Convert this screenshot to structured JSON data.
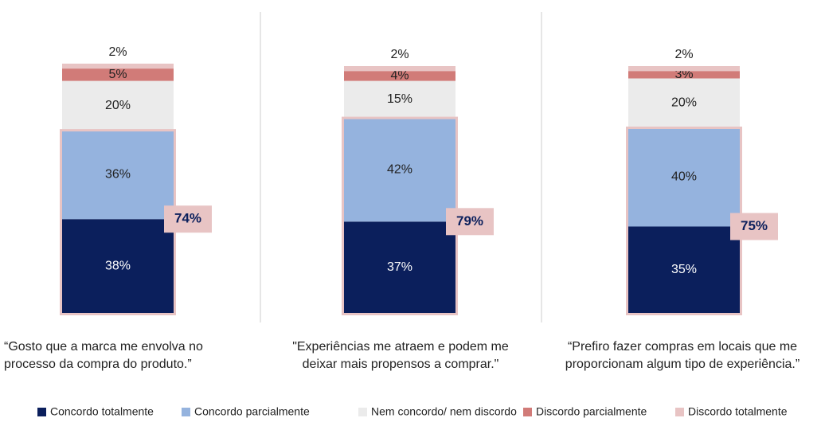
{
  "chart_data": {
    "type": "stacked-bar",
    "categories": [
      "“Gosto que a marca me envolva no processo da compra do produto.”",
      "\"Experiências me atraem e podem me deixar mais propensos a comprar.\"",
      "“Prefiro fazer compras em locais que me proporcionam algum tipo de experiência.”"
    ],
    "series": [
      {
        "name": "Concordo totalmente",
        "color": "#0b1f5c",
        "values": [
          38,
          37,
          35
        ],
        "value_labels": [
          "38%",
          "37%",
          "35%"
        ]
      },
      {
        "name": "Concordo parcialmente",
        "color": "#95b3de",
        "values": [
          36,
          42,
          40
        ],
        "value_labels": [
          "36%",
          "42%",
          "40%"
        ]
      },
      {
        "name": "Nem concordo/ nem discordo",
        "color": "#ebebeb",
        "values": [
          20,
          15,
          20
        ],
        "value_labels": [
          "20%",
          "15%",
          "20%"
        ]
      },
      {
        "name": "Discordo parcialmente",
        "color": "#d17b78",
        "values": [
          5,
          4,
          3
        ],
        "value_labels": [
          "5%",
          "4%",
          "3%"
        ]
      },
      {
        "name": "Discordo totalmente",
        "color": "#e8c4c4",
        "values": [
          2,
          2,
          2
        ],
        "value_labels": [
          "2%",
          "2%",
          "2%"
        ]
      }
    ],
    "totals": {
      "color": "#e8c4c4",
      "values": [
        74,
        79,
        75
      ],
      "value_labels": [
        "74%",
        "79%",
        "75%"
      ]
    }
  }
}
